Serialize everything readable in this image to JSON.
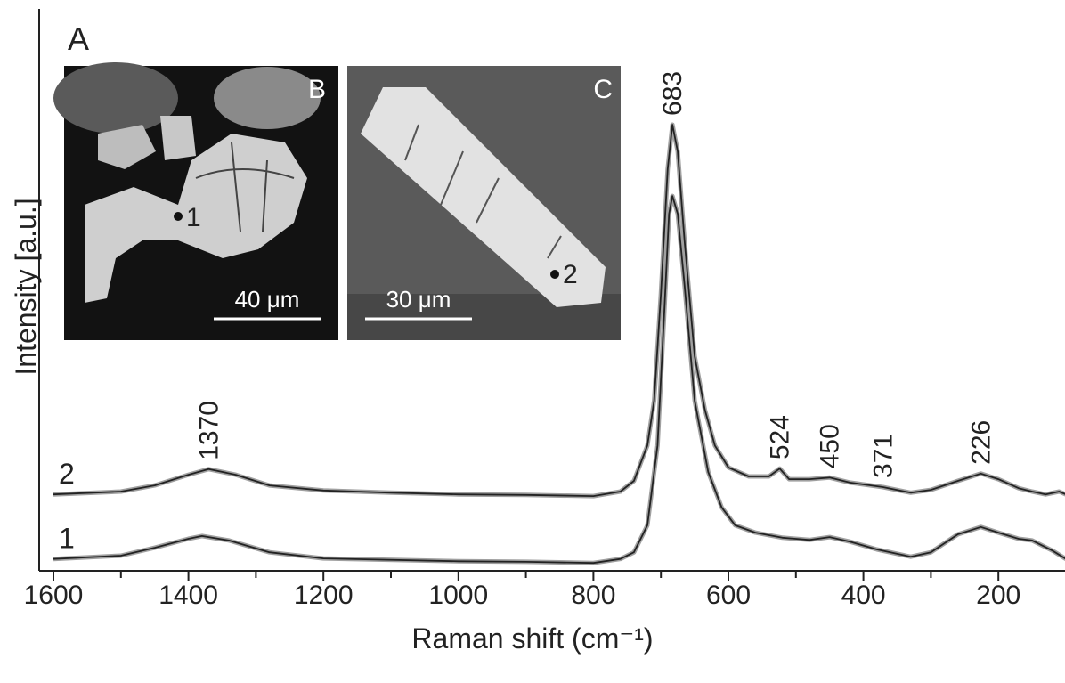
{
  "chart_data": {
    "type": "line",
    "panel_label": "A",
    "x_label": "Raman shift (cm⁻¹)",
    "y_label": "Intensity [a.u.]",
    "xlim": [
      1600,
      100
    ],
    "xticks": [
      1600,
      1400,
      1200,
      1000,
      800,
      600,
      400,
      200
    ],
    "x_minor_ticks": [
      1500,
      1300,
      1100,
      900,
      700,
      500,
      300,
      100
    ],
    "ylim": [
      0,
      100
    ],
    "line_color": "#222222",
    "raw_color": "#a0a0a0",
    "series": [
      {
        "name": "1",
        "x": [
          1600,
          1500,
          1450,
          1400,
          1380,
          1340,
          1280,
          1200,
          1000,
          900,
          800,
          760,
          740,
          720,
          705,
          695,
          688,
          683,
          675,
          665,
          650,
          630,
          610,
          590,
          560,
          520,
          480,
          450,
          420,
          380,
          330,
          300,
          260,
          226,
          200,
          170,
          150,
          120,
          100
        ],
        "values": [
          2.1,
          2.7,
          4.1,
          5.7,
          6.2,
          5.4,
          3.3,
          2.2,
          1.7,
          1.6,
          1.4,
          2.1,
          3.3,
          8.1,
          22.3,
          46.1,
          63.5,
          66.7,
          63.5,
          50.9,
          30.3,
          17.6,
          11.3,
          8.1,
          6.8,
          5.9,
          5.5,
          6.0,
          5.2,
          3.8,
          2.5,
          3.3,
          6.5,
          7.8,
          6.8,
          5.7,
          5.4,
          3.6,
          2.1
        ]
      },
      {
        "name": "2",
        "x": [
          1600,
          1500,
          1450,
          1400,
          1370,
          1330,
          1280,
          1200,
          1100,
          1000,
          900,
          800,
          760,
          740,
          720,
          710,
          700,
          690,
          683,
          675,
          665,
          650,
          635,
          620,
          600,
          570,
          540,
          524,
          510,
          480,
          450,
          420,
          371,
          330,
          300,
          260,
          226,
          200,
          170,
          150,
          130,
          110,
          100
        ],
        "values": [
          13.6,
          14.1,
          15.2,
          17.1,
          18.1,
          17.1,
          15.2,
          14.3,
          13.9,
          13.6,
          13.5,
          13.3,
          14.1,
          16.0,
          22.3,
          30.3,
          49.3,
          71.5,
          79.4,
          74.6,
          58.8,
          38.2,
          28.7,
          22.3,
          18.4,
          16.8,
          16.8,
          18.2,
          16.3,
          16.3,
          16.6,
          15.7,
          14.9,
          13.9,
          14.4,
          16.0,
          17.3,
          16.3,
          14.7,
          14.1,
          13.6,
          14.1,
          13.6
        ]
      }
    ],
    "peaks": [
      1370,
      683,
      524,
      450,
      371,
      226
    ],
    "insets": [
      {
        "label": "B",
        "point": "1",
        "scale_bar": "40 μm"
      },
      {
        "label": "C",
        "point": "2",
        "scale_bar": "30 μm"
      }
    ]
  }
}
